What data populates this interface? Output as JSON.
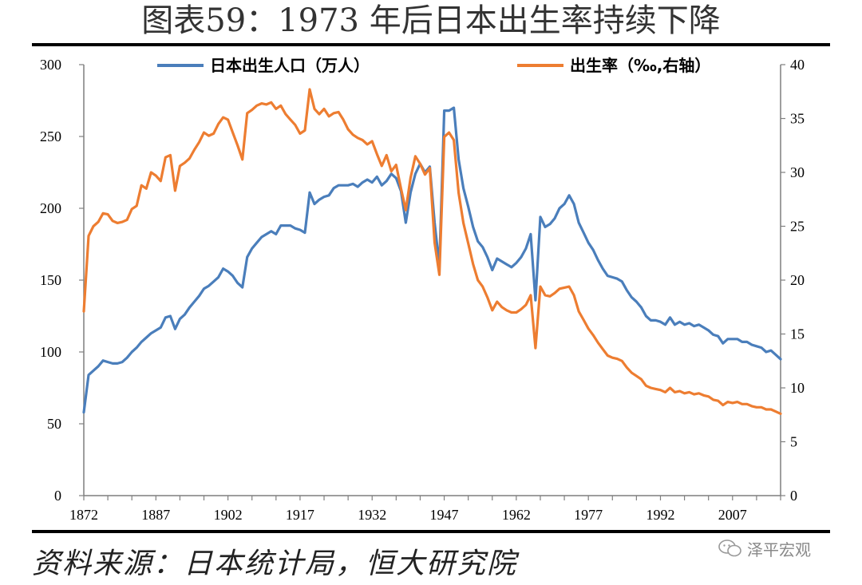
{
  "title": "图表59：1973 年后日本出生率持续下降",
  "source": "资料来源：日本统计局，恒大研究院",
  "watermark": "泽平宏观",
  "chart_data": {
    "type": "line",
    "xlim": [
      1872,
      2017
    ],
    "x_ticks": [
      "1872",
      "1887",
      "1902",
      "1917",
      "1932",
      "1947",
      "1962",
      "1977",
      "1992",
      "2007"
    ],
    "y_left": {
      "lim": [
        0,
        300
      ],
      "ticks": [
        "0",
        "50",
        "100",
        "150",
        "200",
        "250",
        "300"
      ]
    },
    "y_right": {
      "lim": [
        0,
        40
      ],
      "ticks": [
        "0",
        "5",
        "10",
        "15",
        "20",
        "25",
        "30",
        "35",
        "40"
      ]
    },
    "legend_position": "top",
    "series": [
      {
        "name": "日本出生人口（万人）",
        "axis": "left",
        "color": "#4a7ebb",
        "points": [
          [
            1872,
            58
          ],
          [
            1873,
            84
          ],
          [
            1874,
            87
          ],
          [
            1875,
            90
          ],
          [
            1876,
            94
          ],
          [
            1877,
            93
          ],
          [
            1878,
            92
          ],
          [
            1879,
            92
          ],
          [
            1880,
            93
          ],
          [
            1881,
            96
          ],
          [
            1882,
            100
          ],
          [
            1883,
            103
          ],
          [
            1884,
            107
          ],
          [
            1885,
            110
          ],
          [
            1886,
            113
          ],
          [
            1887,
            115
          ],
          [
            1888,
            117
          ],
          [
            1889,
            124
          ],
          [
            1890,
            125
          ],
          [
            1891,
            116
          ],
          [
            1892,
            123
          ],
          [
            1893,
            126
          ],
          [
            1894,
            131
          ],
          [
            1895,
            135
          ],
          [
            1896,
            139
          ],
          [
            1897,
            144
          ],
          [
            1898,
            146
          ],
          [
            1899,
            149
          ],
          [
            1900,
            152
          ],
          [
            1901,
            158
          ],
          [
            1902,
            156
          ],
          [
            1903,
            153
          ],
          [
            1904,
            148
          ],
          [
            1905,
            145
          ],
          [
            1906,
            166
          ],
          [
            1907,
            172
          ],
          [
            1908,
            176
          ],
          [
            1909,
            180
          ],
          [
            1910,
            182
          ],
          [
            1911,
            184
          ],
          [
            1912,
            182
          ],
          [
            1913,
            188
          ],
          [
            1914,
            188
          ],
          [
            1915,
            188
          ],
          [
            1916,
            186
          ],
          [
            1917,
            185
          ],
          [
            1918,
            183
          ],
          [
            1919,
            211
          ],
          [
            1920,
            203
          ],
          [
            1921,
            206
          ],
          [
            1922,
            208
          ],
          [
            1923,
            209
          ],
          [
            1924,
            214
          ],
          [
            1925,
            216
          ],
          [
            1926,
            216
          ],
          [
            1927,
            216
          ],
          [
            1928,
            217
          ],
          [
            1929,
            215
          ],
          [
            1930,
            218
          ],
          [
            1931,
            220
          ],
          [
            1932,
            218
          ],
          [
            1933,
            222
          ],
          [
            1934,
            216
          ],
          [
            1935,
            219
          ],
          [
            1936,
            224
          ],
          [
            1937,
            221
          ],
          [
            1938,
            212
          ],
          [
            1939,
            190
          ],
          [
            1940,
            211
          ],
          [
            1941,
            224
          ],
          [
            1942,
            231
          ],
          [
            1943,
            225
          ],
          [
            1944,
            229
          ],
          [
            1945,
            190
          ],
          [
            1946,
            160
          ],
          [
            1947,
            268
          ],
          [
            1948,
            268
          ],
          [
            1949,
            270
          ],
          [
            1950,
            234
          ],
          [
            1951,
            214
          ],
          [
            1952,
            201
          ],
          [
            1953,
            187
          ],
          [
            1954,
            177
          ],
          [
            1955,
            173
          ],
          [
            1956,
            166
          ],
          [
            1957,
            157
          ],
          [
            1958,
            165
          ],
          [
            1959,
            163
          ],
          [
            1960,
            161
          ],
          [
            1961,
            159
          ],
          [
            1962,
            162
          ],
          [
            1963,
            166
          ],
          [
            1964,
            172
          ],
          [
            1965,
            182
          ],
          [
            1966,
            136
          ],
          [
            1967,
            194
          ],
          [
            1968,
            187
          ],
          [
            1969,
            189
          ],
          [
            1970,
            193
          ],
          [
            1971,
            200
          ],
          [
            1972,
            203
          ],
          [
            1973,
            209
          ],
          [
            1974,
            203
          ],
          [
            1975,
            190
          ],
          [
            1976,
            183
          ],
          [
            1977,
            176
          ],
          [
            1978,
            171
          ],
          [
            1979,
            164
          ],
          [
            1980,
            158
          ],
          [
            1981,
            153
          ],
          [
            1982,
            152
          ],
          [
            1983,
            151
          ],
          [
            1984,
            149
          ],
          [
            1985,
            143
          ],
          [
            1986,
            138
          ],
          [
            1987,
            135
          ],
          [
            1988,
            131
          ],
          [
            1989,
            125
          ],
          [
            1990,
            122
          ],
          [
            1991,
            122
          ],
          [
            1992,
            121
          ],
          [
            1993,
            119
          ],
          [
            1994,
            124
          ],
          [
            1995,
            119
          ],
          [
            1996,
            121
          ],
          [
            1997,
            119
          ],
          [
            1998,
            120
          ],
          [
            1999,
            118
          ],
          [
            2000,
            119
          ],
          [
            2001,
            117
          ],
          [
            2002,
            115
          ],
          [
            2003,
            112
          ],
          [
            2004,
            111
          ],
          [
            2005,
            106
          ],
          [
            2006,
            109
          ],
          [
            2007,
            109
          ],
          [
            2008,
            109
          ],
          [
            2009,
            107
          ],
          [
            2010,
            107
          ],
          [
            2011,
            105
          ],
          [
            2012,
            104
          ],
          [
            2013,
            103
          ],
          [
            2014,
            100
          ],
          [
            2015,
            101
          ],
          [
            2016,
            98
          ],
          [
            2017,
            95
          ]
        ]
      },
      {
        "name": "出生率（‰,右轴）",
        "axis": "right",
        "color": "#ed7d31",
        "points": [
          [
            1872,
            17.1
          ],
          [
            1873,
            24.1
          ],
          [
            1874,
            25.0
          ],
          [
            1875,
            25.4
          ],
          [
            1876,
            26.2
          ],
          [
            1877,
            26.1
          ],
          [
            1878,
            25.5
          ],
          [
            1879,
            25.3
          ],
          [
            1880,
            25.4
          ],
          [
            1881,
            25.6
          ],
          [
            1882,
            26.6
          ],
          [
            1883,
            26.9
          ],
          [
            1884,
            28.8
          ],
          [
            1885,
            28.5
          ],
          [
            1886,
            30.0
          ],
          [
            1887,
            29.7
          ],
          [
            1888,
            29.2
          ],
          [
            1889,
            31.4
          ],
          [
            1890,
            31.6
          ],
          [
            1891,
            28.3
          ],
          [
            1892,
            30.6
          ],
          [
            1893,
            30.9
          ],
          [
            1894,
            31.3
          ],
          [
            1895,
            32.1
          ],
          [
            1896,
            32.8
          ],
          [
            1897,
            33.7
          ],
          [
            1898,
            33.4
          ],
          [
            1899,
            33.6
          ],
          [
            1900,
            34.5
          ],
          [
            1901,
            35.1
          ],
          [
            1902,
            34.9
          ],
          [
            1903,
            33.7
          ],
          [
            1904,
            32.5
          ],
          [
            1905,
            31.2
          ],
          [
            1906,
            35.5
          ],
          [
            1907,
            35.8
          ],
          [
            1908,
            36.2
          ],
          [
            1909,
            36.4
          ],
          [
            1910,
            36.3
          ],
          [
            1911,
            36.5
          ],
          [
            1912,
            35.9
          ],
          [
            1913,
            36.2
          ],
          [
            1914,
            35.4
          ],
          [
            1915,
            34.9
          ],
          [
            1916,
            34.4
          ],
          [
            1917,
            33.6
          ],
          [
            1918,
            33.9
          ],
          [
            1919,
            37.7
          ],
          [
            1920,
            35.9
          ],
          [
            1921,
            35.4
          ],
          [
            1922,
            35.9
          ],
          [
            1923,
            35.2
          ],
          [
            1924,
            35.5
          ],
          [
            1925,
            35.6
          ],
          [
            1926,
            34.9
          ],
          [
            1927,
            34.0
          ],
          [
            1928,
            33.5
          ],
          [
            1929,
            33.2
          ],
          [
            1930,
            33.0
          ],
          [
            1931,
            32.6
          ],
          [
            1932,
            32.9
          ],
          [
            1933,
            31.7
          ],
          [
            1934,
            30.6
          ],
          [
            1935,
            31.6
          ],
          [
            1936,
            30.1
          ],
          [
            1937,
            30.7
          ],
          [
            1938,
            28.5
          ],
          [
            1939,
            26.5
          ],
          [
            1940,
            29.5
          ],
          [
            1941,
            31.5
          ],
          [
            1942,
            30.8
          ],
          [
            1943,
            29.8
          ],
          [
            1944,
            30.4
          ],
          [
            1945,
            23.5
          ],
          [
            1946,
            20.5
          ],
          [
            1947,
            33.3
          ],
          [
            1948,
            33.7
          ],
          [
            1949,
            33.0
          ],
          [
            1950,
            28.1
          ],
          [
            1951,
            25.3
          ],
          [
            1952,
            23.4
          ],
          [
            1953,
            21.5
          ],
          [
            1954,
            20.0
          ],
          [
            1955,
            19.4
          ],
          [
            1956,
            18.4
          ],
          [
            1957,
            17.2
          ],
          [
            1958,
            18.0
          ],
          [
            1959,
            17.5
          ],
          [
            1960,
            17.2
          ],
          [
            1961,
            17.0
          ],
          [
            1962,
            17.0
          ],
          [
            1963,
            17.3
          ],
          [
            1964,
            17.7
          ],
          [
            1965,
            18.6
          ],
          [
            1966,
            13.7
          ],
          [
            1967,
            19.4
          ],
          [
            1968,
            18.6
          ],
          [
            1969,
            18.5
          ],
          [
            1970,
            18.8
          ],
          [
            1971,
            19.2
          ],
          [
            1972,
            19.3
          ],
          [
            1973,
            19.4
          ],
          [
            1974,
            18.6
          ],
          [
            1975,
            17.1
          ],
          [
            1976,
            16.3
          ],
          [
            1977,
            15.5
          ],
          [
            1978,
            14.9
          ],
          [
            1979,
            14.2
          ],
          [
            1980,
            13.6
          ],
          [
            1981,
            13.0
          ],
          [
            1982,
            12.8
          ],
          [
            1983,
            12.7
          ],
          [
            1984,
            12.5
          ],
          [
            1985,
            11.9
          ],
          [
            1986,
            11.4
          ],
          [
            1987,
            11.1
          ],
          [
            1988,
            10.8
          ],
          [
            1989,
            10.2
          ],
          [
            1990,
            10.0
          ],
          [
            1991,
            9.9
          ],
          [
            1992,
            9.8
          ],
          [
            1993,
            9.6
          ],
          [
            1994,
            10.0
          ],
          [
            1995,
            9.6
          ],
          [
            1996,
            9.7
          ],
          [
            1997,
            9.5
          ],
          [
            1998,
            9.6
          ],
          [
            1999,
            9.4
          ],
          [
            2000,
            9.5
          ],
          [
            2001,
            9.3
          ],
          [
            2002,
            9.2
          ],
          [
            2003,
            8.9
          ],
          [
            2004,
            8.8
          ],
          [
            2005,
            8.4
          ],
          [
            2006,
            8.7
          ],
          [
            2007,
            8.6
          ],
          [
            2008,
            8.7
          ],
          [
            2009,
            8.5
          ],
          [
            2010,
            8.5
          ],
          [
            2011,
            8.3
          ],
          [
            2012,
            8.2
          ],
          [
            2013,
            8.2
          ],
          [
            2014,
            8.0
          ],
          [
            2015,
            8.0
          ],
          [
            2016,
            7.8
          ],
          [
            2017,
            7.6
          ]
        ]
      }
    ]
  }
}
